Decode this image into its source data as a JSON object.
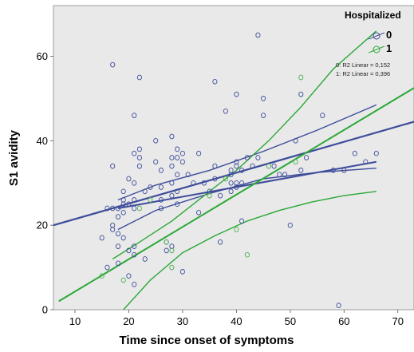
{
  "chart_data": {
    "type": "scatter",
    "title": "",
    "xlabel": "Time since onset of symptoms",
    "ylabel": "S1 avidity",
    "xlim": [
      6,
      73
    ],
    "ylim": [
      0,
      72
    ],
    "x_ticks": [
      "10",
      "20",
      "30",
      "40",
      "50",
      "60",
      "70"
    ],
    "y_ticks": [
      "0",
      "20",
      "40",
      "60"
    ],
    "grid": false,
    "legend_title": "Hospitalized",
    "legend_position": "right",
    "series": [
      {
        "name": "0",
        "color": "#3d4c9a",
        "marker": "circle-open",
        "points": [
          [
            15,
            17
          ],
          [
            16,
            24
          ],
          [
            16,
            10
          ],
          [
            17,
            58
          ],
          [
            17,
            34
          ],
          [
            17,
            20
          ],
          [
            17,
            19
          ],
          [
            17,
            24
          ],
          [
            18,
            24
          ],
          [
            18,
            22
          ],
          [
            18,
            18
          ],
          [
            18,
            15
          ],
          [
            18,
            11
          ],
          [
            19,
            28
          ],
          [
            19,
            26
          ],
          [
            19,
            25
          ],
          [
            19,
            23
          ],
          [
            19,
            17
          ],
          [
            20,
            31
          ],
          [
            20,
            25
          ],
          [
            20,
            14
          ],
          [
            20,
            8
          ],
          [
            21,
            30
          ],
          [
            21,
            46
          ],
          [
            21,
            37
          ],
          [
            21,
            26
          ],
          [
            21,
            24
          ],
          [
            21,
            15
          ],
          [
            21,
            13
          ],
          [
            21,
            6
          ],
          [
            22,
            55
          ],
          [
            22,
            38
          ],
          [
            22,
            36
          ],
          [
            22,
            34
          ],
          [
            23,
            28
          ],
          [
            23,
            12
          ],
          [
            24,
            29
          ],
          [
            25,
            35
          ],
          [
            25,
            40
          ],
          [
            26,
            33
          ],
          [
            26,
            29
          ],
          [
            26,
            26
          ],
          [
            26,
            24
          ],
          [
            27,
            16
          ],
          [
            27,
            14
          ],
          [
            28,
            41
          ],
          [
            28,
            36
          ],
          [
            28,
            34
          ],
          [
            28,
            30
          ],
          [
            28,
            27
          ],
          [
            28,
            15
          ],
          [
            29,
            38
          ],
          [
            29,
            36
          ],
          [
            29,
            32
          ],
          [
            29,
            28
          ],
          [
            29,
            25
          ],
          [
            30,
            37
          ],
          [
            30,
            35
          ],
          [
            30,
            9
          ],
          [
            31,
            32
          ],
          [
            32,
            30
          ],
          [
            33,
            37
          ],
          [
            33,
            23
          ],
          [
            34,
            30
          ],
          [
            35,
            28
          ],
          [
            36,
            54
          ],
          [
            36,
            34
          ],
          [
            36,
            31
          ],
          [
            37,
            16
          ],
          [
            37,
            27
          ],
          [
            38,
            47
          ],
          [
            39,
            33
          ],
          [
            39,
            32
          ],
          [
            39,
            30
          ],
          [
            39,
            28
          ],
          [
            40,
            51
          ],
          [
            40,
            35
          ],
          [
            40,
            34
          ],
          [
            40,
            30
          ],
          [
            40,
            29
          ],
          [
            41,
            30
          ],
          [
            41,
            33
          ],
          [
            41,
            21
          ],
          [
            42,
            36
          ],
          [
            43,
            34
          ],
          [
            44,
            65
          ],
          [
            44,
            36
          ],
          [
            45,
            50
          ],
          [
            45,
            46
          ],
          [
            47,
            34
          ],
          [
            48,
            32
          ],
          [
            49,
            32
          ],
          [
            50,
            20
          ],
          [
            51,
            40
          ],
          [
            52,
            51
          ],
          [
            52,
            33
          ],
          [
            53,
            36
          ],
          [
            56,
            46
          ],
          [
            58,
            33
          ],
          [
            59,
            1
          ],
          [
            60,
            33
          ],
          [
            62,
            37
          ],
          [
            64,
            35
          ],
          [
            66,
            37
          ]
        ]
      },
      {
        "name": "1",
        "color": "#4caf50",
        "marker": "circle-open",
        "points": [
          [
            15,
            8
          ],
          [
            19,
            7
          ],
          [
            22,
            24
          ],
          [
            24,
            26
          ],
          [
            27,
            16
          ],
          [
            28,
            14
          ],
          [
            28,
            10
          ],
          [
            35,
            27
          ],
          [
            38,
            31
          ],
          [
            40,
            19
          ],
          [
            42,
            13
          ],
          [
            46,
            34
          ],
          [
            51,
            35
          ],
          [
            52,
            55
          ]
        ]
      }
    ],
    "fit_lines": [
      {
        "series": "0",
        "label": "0: R2 Linear = 0,152",
        "color": "#3d4c9a",
        "x": [
          18,
          66
        ],
        "y": [
          24,
          35
        ]
      },
      {
        "series": "1",
        "label": "1: R2 Linear = 0,396",
        "color": "#2aa836",
        "x": [
          7,
          73
        ],
        "y": [
          2,
          52.5
        ]
      }
    ],
    "total_fit": {
      "color": "#3d4c9a",
      "x": [
        6,
        73
      ],
      "y": [
        20,
        44.5
      ]
    },
    "confidence_bands": [
      {
        "series": "0",
        "color": "#3d4c9a",
        "upper": {
          "x": [
            18,
            25,
            35,
            45,
            55,
            66
          ],
          "y": [
            26,
            29.5,
            33,
            37.5,
            42.5,
            48.5
          ]
        },
        "lower": {
          "x": [
            18,
            25,
            35,
            45,
            55,
            66
          ],
          "y": [
            19,
            23.5,
            27.5,
            31,
            32.5,
            33.5
          ]
        }
      },
      {
        "series": "1",
        "color": "#2aa836",
        "upper": {
          "x": [
            17,
            22,
            28,
            34,
            40,
            46,
            52,
            58,
            66
          ],
          "y": [
            12,
            16,
            21,
            27,
            33,
            40,
            48,
            57,
            66
          ]
        },
        "lower": {
          "x": [
            19,
            24,
            30,
            36,
            42,
            48,
            54,
            60,
            66
          ],
          "y": [
            0,
            7,
            13.5,
            17.5,
            21,
            23.5,
            25.5,
            27,
            28
          ]
        }
      }
    ]
  }
}
